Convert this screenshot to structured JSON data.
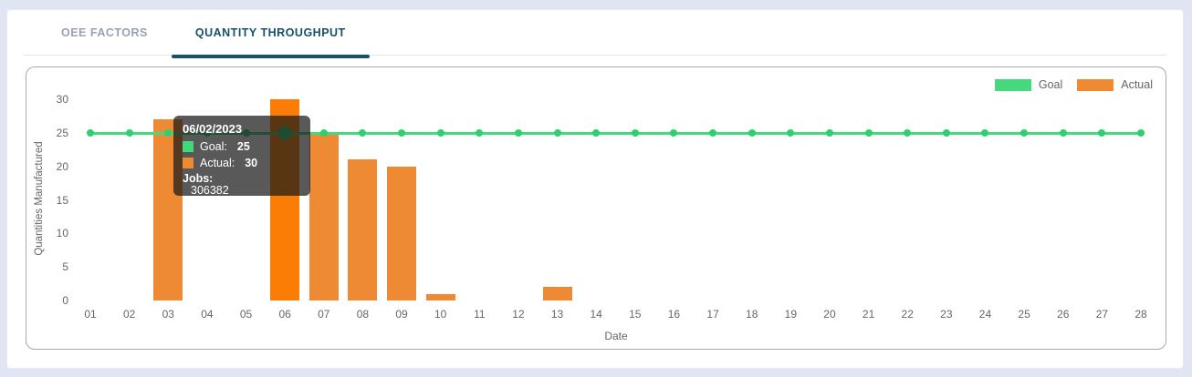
{
  "colors": {
    "page_background": "#e0e4f3",
    "card_background": "#ffffff",
    "tab_active": "#175169",
    "tab_inactive": "#97a1b5",
    "panel_border": "#a9a9a9",
    "axis_text": "#666666",
    "goal_green": "#45d87d",
    "goal_point_green": "#2ed06e",
    "actual_orange": "#ee8a33",
    "actual_orange_highlight": "#fb7d05",
    "tooltip_background": "rgba(25,25,25,0.72)"
  },
  "tabs": [
    {
      "label": "OEE FACTORS",
      "active": false
    },
    {
      "label": "QUANTITY THROUGHPUT",
      "active": true
    }
  ],
  "chart_data": {
    "type": "bar",
    "title": "",
    "xlabel": "Date",
    "ylabel": "Quantities Manufactured",
    "ylim": [
      0,
      30
    ],
    "yticks": [
      0,
      5,
      10,
      15,
      20,
      25,
      30
    ],
    "grid": false,
    "legend_position": "top-right",
    "categories": [
      "01",
      "02",
      "03",
      "04",
      "05",
      "06",
      "07",
      "08",
      "09",
      "10",
      "11",
      "12",
      "13",
      "14",
      "15",
      "16",
      "17",
      "18",
      "19",
      "20",
      "21",
      "22",
      "23",
      "24",
      "25",
      "26",
      "27",
      "28"
    ],
    "series": [
      {
        "name": "Goal",
        "type": "line",
        "color": "#45d87d",
        "point_color": "#2ed06e",
        "values": [
          25,
          25,
          25,
          25,
          25,
          25,
          25,
          25,
          25,
          25,
          25,
          25,
          25,
          25,
          25,
          25,
          25,
          25,
          25,
          25,
          25,
          25,
          25,
          25,
          25,
          25,
          25,
          25
        ]
      },
      {
        "name": "Actual",
        "type": "bar",
        "color": "#ee8a33",
        "highlight_color": "#fb7d05",
        "values": [
          0,
          0,
          27,
          0,
          0,
          30,
          25,
          21,
          20,
          1,
          0,
          0,
          2,
          0,
          0,
          0,
          0,
          0,
          0,
          0,
          0,
          0,
          0,
          0,
          0,
          0,
          0,
          0
        ]
      }
    ],
    "highlight": {
      "category": "06",
      "goal": 25,
      "actual": 30
    }
  },
  "tooltip": {
    "title": "06/02/2023",
    "rows": [
      {
        "label": "Goal:",
        "value": "25",
        "color": "#41d97c"
      },
      {
        "label": "Actual:",
        "value": "30",
        "color": "#ee8a33"
      }
    ],
    "jobs_label": "Jobs:",
    "jobs_value": "306382"
  }
}
